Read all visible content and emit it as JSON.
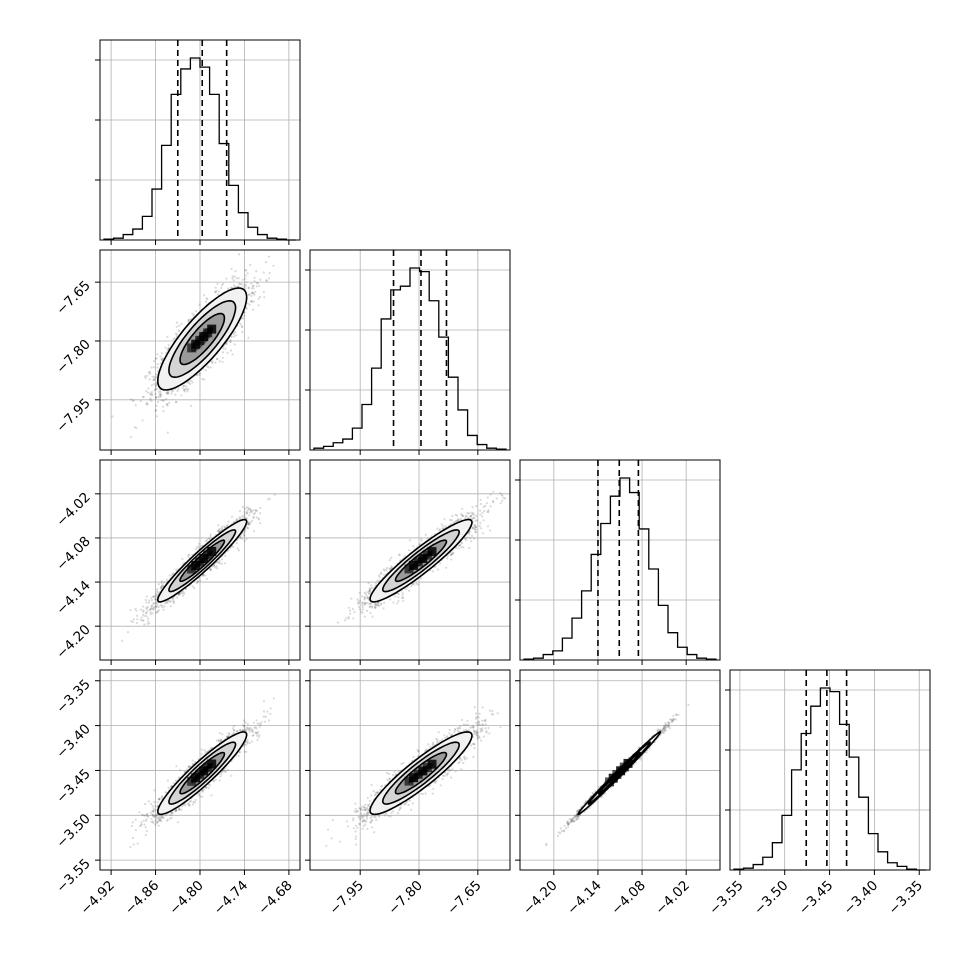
{
  "chart_data": {
    "type": "corner",
    "grid": true,
    "n_params": 4,
    "params": [
      {
        "range": [
          -4.935,
          -4.665
        ],
        "ticks": [
          -4.92,
          -4.86,
          -4.8,
          -4.74,
          -4.68
        ],
        "tick_labels": [
          "−4.92",
          "−4.86",
          "−4.80",
          "−4.74",
          "−4.68"
        ],
        "quantiles": [
          -4.83,
          -4.797,
          -4.764
        ],
        "hist": [
          0.5,
          1,
          3,
          6,
          13,
          28,
          52,
          80,
          94,
          100,
          95,
          80,
          53,
          30,
          15,
          7,
          3,
          1,
          0.5,
          0
        ]
      },
      {
        "range": [
          -8.078,
          -7.568
        ],
        "ticks": [
          -7.95,
          -7.8,
          -7.65
        ],
        "tick_labels": [
          "−7.95",
          "−7.80",
          "−7.65"
        ],
        "quantiles": [
          -7.865,
          -7.795,
          -7.73
        ],
        "hist": [
          1,
          2,
          4,
          6,
          12,
          25,
          45,
          72,
          88,
          90,
          100,
          98,
          82,
          62,
          40,
          22,
          8,
          3,
          1,
          0.5
        ]
      },
      {
        "range": [
          -4.246,
          -3.974
        ],
        "ticks": [
          -4.2,
          -4.14,
          -4.08,
          -4.02
        ],
        "tick_labels": [
          "−4.20",
          "−4.14",
          "−4.08",
          "−4.02"
        ],
        "quantiles": [
          -4.14,
          -4.111,
          -4.085
        ],
        "hist": [
          0.5,
          1,
          3,
          5,
          12,
          23,
          38,
          58,
          75,
          90,
          100,
          92,
          72,
          50,
          30,
          15,
          7,
          3,
          1,
          0.5
        ]
      },
      {
        "range": [
          -3.561,
          -3.338
        ],
        "ticks": [
          -3.55,
          -3.5,
          -3.45,
          -3.4,
          -3.35
        ],
        "tick_labels": [
          "−3.55",
          "−3.50",
          "−3.45",
          "−3.40",
          "−3.35"
        ],
        "quantiles": [
          -3.476,
          -3.453,
          -3.431
        ],
        "hist": [
          0.5,
          1,
          3,
          7,
          15,
          30,
          55,
          75,
          90,
          100,
          98,
          80,
          62,
          40,
          20,
          10,
          4,
          2,
          0.5,
          0
        ]
      }
    ],
    "pairs": [
      {
        "row": 1,
        "col": 0,
        "center": [
          -4.797,
          -7.795
        ],
        "sd": [
          0.03,
          0.065
        ],
        "rho": 0.82,
        "cloud": 2500
      },
      {
        "row": 2,
        "col": 0,
        "center": [
          -4.797,
          -4.111
        ],
        "sd": [
          0.03,
          0.028
        ],
        "rho": 0.95,
        "cloud": 2500
      },
      {
        "row": 2,
        "col": 1,
        "center": [
          -7.795,
          -4.111
        ],
        "sd": [
          0.065,
          0.028
        ],
        "rho": 0.93,
        "cloud": 2500
      },
      {
        "row": 3,
        "col": 0,
        "center": [
          -4.797,
          -3.453
        ],
        "sd": [
          0.03,
          0.023
        ],
        "rho": 0.93,
        "cloud": 2500
      },
      {
        "row": 3,
        "col": 1,
        "center": [
          -7.795,
          -3.453
        ],
        "sd": [
          0.065,
          0.023
        ],
        "rho": 0.91,
        "cloud": 2500
      },
      {
        "row": 3,
        "col": 2,
        "center": [
          -4.111,
          -3.453
        ],
        "sd": [
          0.028,
          0.023
        ],
        "rho": 0.995,
        "cloud": 2500
      }
    ],
    "colors": {
      "ink": "#000000",
      "grid": "#b0b0b0",
      "cloud": "#555555",
      "background": "#ffffff"
    }
  }
}
